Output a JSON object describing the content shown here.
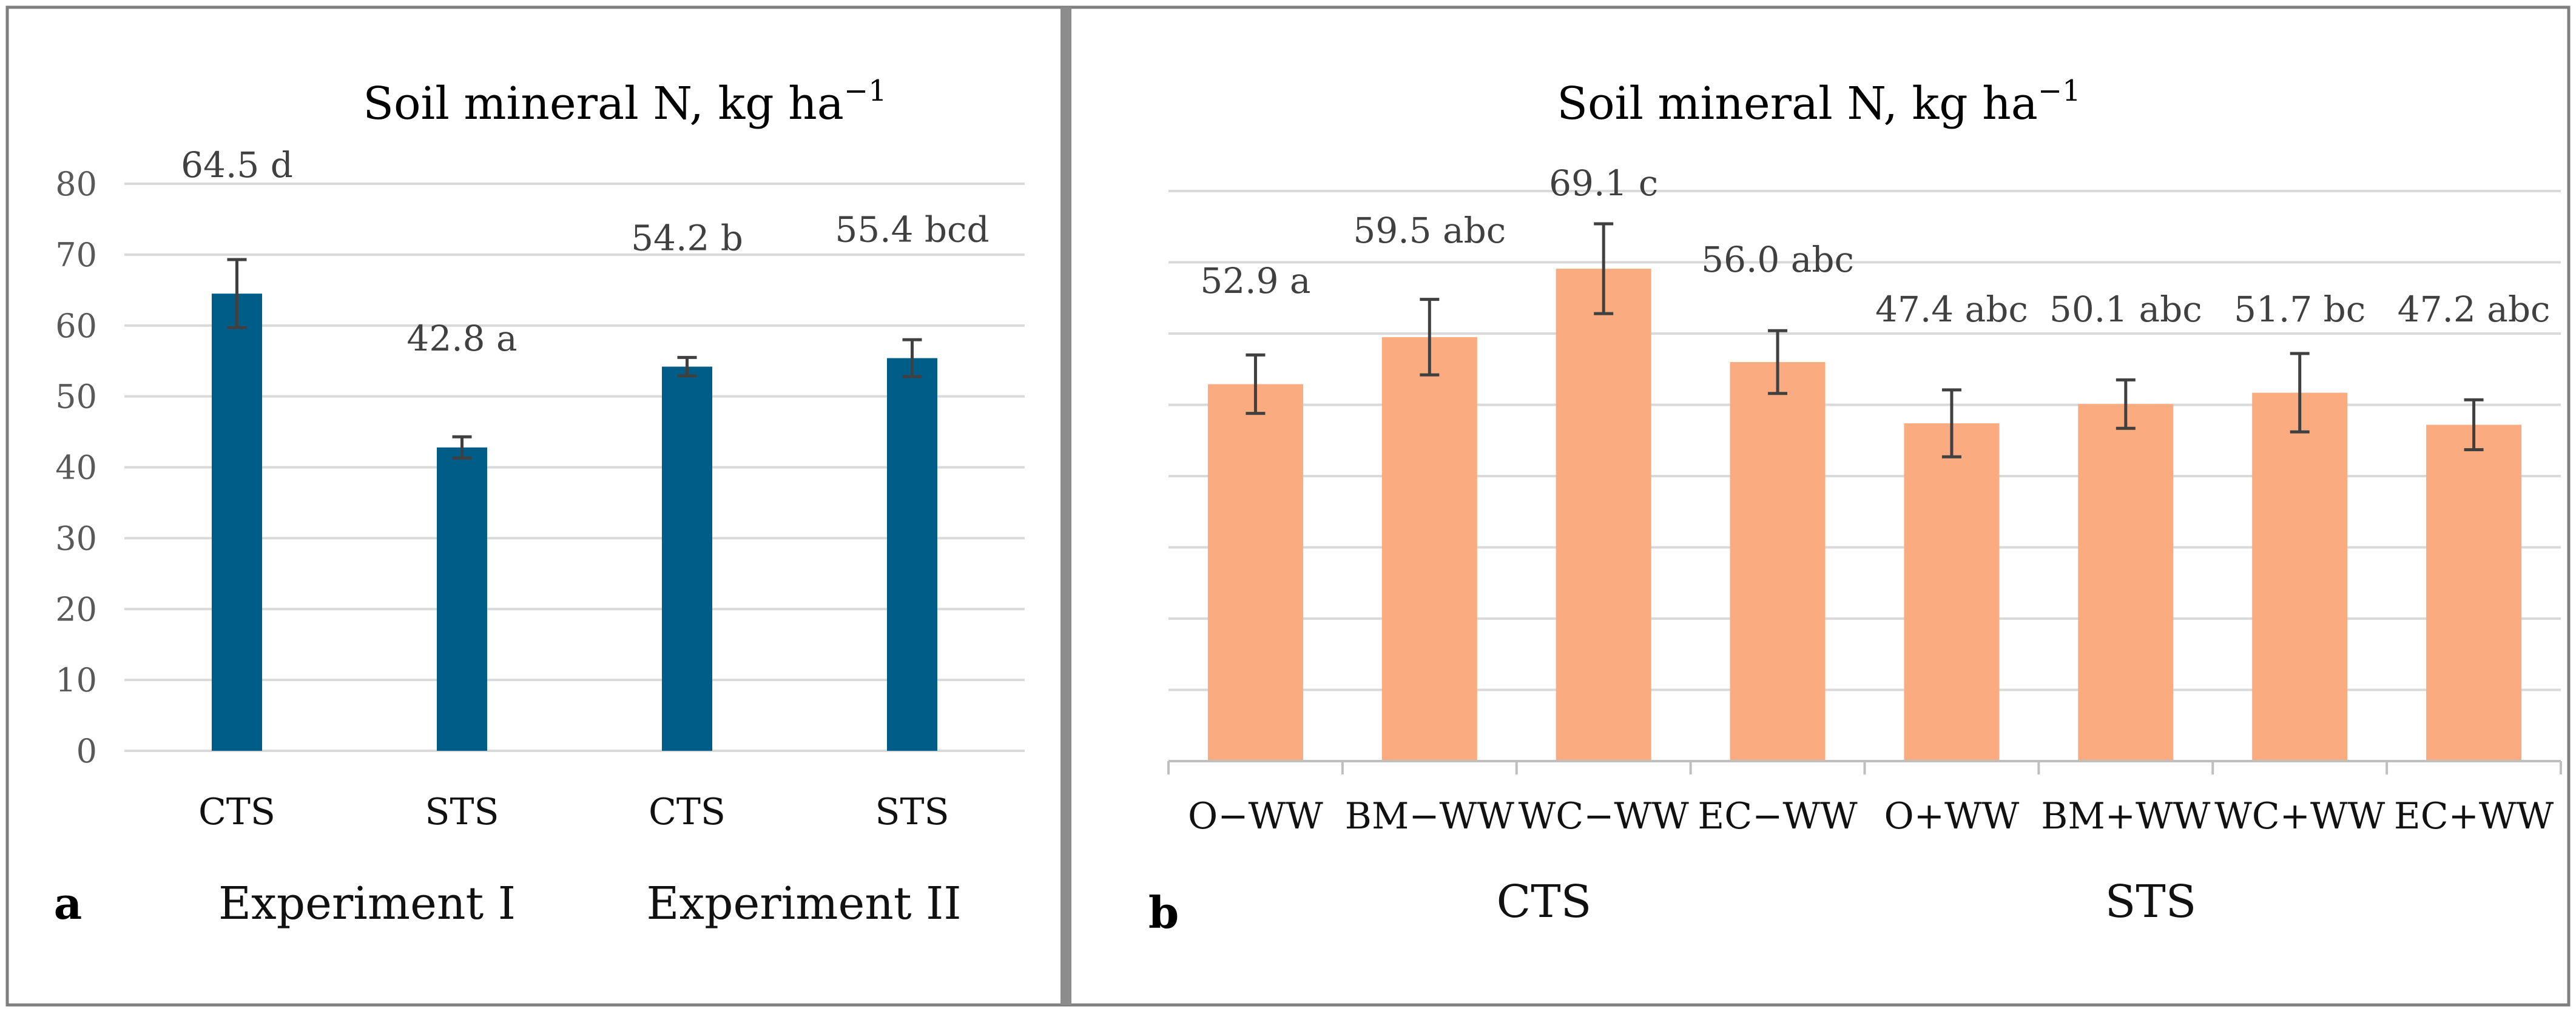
{
  "chart_data": [
    {
      "type": "bar",
      "panel": "a",
      "title": "Soil mineral N, kg ha",
      "title_superscript": "−1",
      "ylim": [
        0,
        80
      ],
      "yticks": [
        "0",
        "10",
        "20",
        "30",
        "40",
        "50",
        "60",
        "70",
        "80"
      ],
      "categories": [
        "CTS",
        "STS",
        "CTS",
        "STS"
      ],
      "values": [
        64.5,
        42.8,
        54.2,
        55.4
      ],
      "errors": [
        4.8,
        1.5,
        1.3,
        2.6
      ],
      "data_labels": [
        "64.5 d",
        "42.8 a",
        "54.2 b",
        "55.4 bcd"
      ],
      "groups": [
        "Experiment I",
        "Experiment  II"
      ],
      "color": "#005d87",
      "gridlines": true
    },
    {
      "type": "bar",
      "panel": "b",
      "title": "Soil mineral N, kg ha",
      "title_superscript": "−1",
      "ylim": [
        0,
        80
      ],
      "categories": [
        "O−WW",
        "BM−WW",
        "WC−WW",
        "EC−WW",
        "O+WW",
        "BM+WW",
        "WC+WW",
        "EC+WW"
      ],
      "values": [
        52.9,
        59.5,
        69.1,
        56.0,
        47.4,
        50.1,
        51.7,
        47.2
      ],
      "errors": [
        4.1,
        5.3,
        6.3,
        4.4,
        4.7,
        3.4,
        5.5,
        3.5
      ],
      "data_labels": [
        "52.9 a",
        "59.5 abc",
        "69.1 c",
        "56.0 abc",
        "47.4 abc",
        "50.1 abc",
        "51.7 bc",
        "47.2 abc"
      ],
      "groups": [
        "CTS",
        "STS"
      ],
      "color": "#fbab80",
      "gridlines": true
    }
  ]
}
